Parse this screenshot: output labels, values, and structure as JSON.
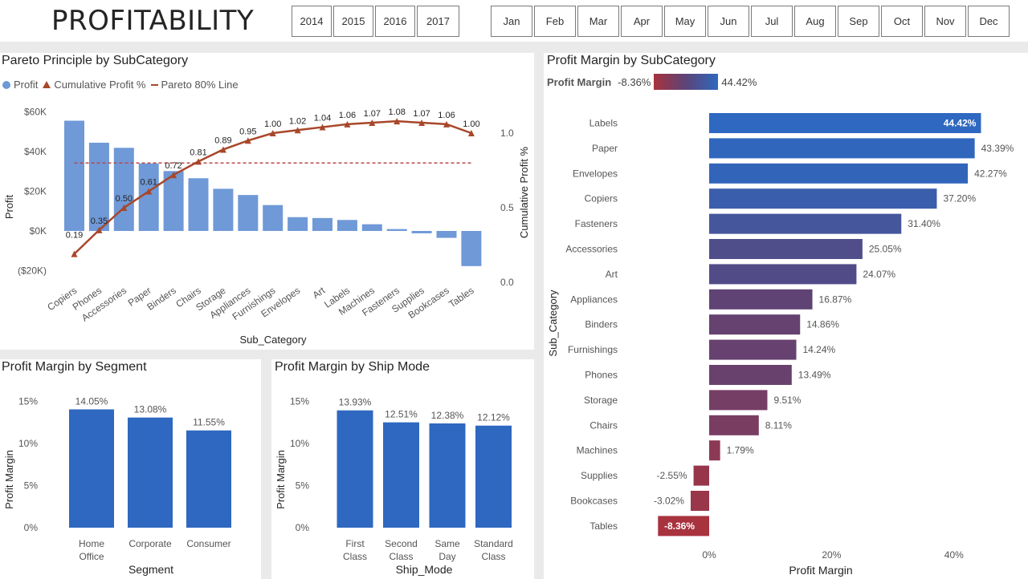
{
  "header": {
    "title": "PROFITABILITY",
    "years": [
      "2014",
      "2015",
      "2016",
      "2017"
    ],
    "months": [
      "Jan",
      "Feb",
      "Mar",
      "Apr",
      "May",
      "Jun",
      "Jul",
      "Aug",
      "Sep",
      "Oct",
      "Nov",
      "Dec"
    ]
  },
  "pareto": {
    "title": "Pareto Principle by SubCategory",
    "legend": {
      "profit": "Profit",
      "cumulative": "Cumulative Profit %",
      "pareto": "Pareto 80% Line"
    },
    "colors": {
      "bar": "#6f99d7",
      "line": "#a8472a"
    }
  },
  "segment": {
    "title": "Profit Margin by Segment"
  },
  "shipmode": {
    "title": "Profit Margin by Ship Mode"
  },
  "margin": {
    "title": "Profit Margin by SubCategory",
    "legend_label": "Profit Margin",
    "legend_min": "-8.36%",
    "legend_max": "44.42%"
  },
  "chart_data": [
    {
      "type": "bar",
      "title": "Pareto Principle by SubCategory",
      "categories": [
        "Copiers",
        "Phones",
        "Accessories",
        "Paper",
        "Binders",
        "Chairs",
        "Storage",
        "Appliances",
        "Furnishings",
        "Envelopes",
        "Art",
        "Labels",
        "Machines",
        "Fasteners",
        "Supplies",
        "Bookcases",
        "Tables"
      ],
      "series": [
        {
          "name": "Profit",
          "values": [
            55618,
            44516,
            41937,
            34054,
            30222,
            26590,
            21279,
            18138,
            13059,
            6964,
            6528,
            5546,
            3385,
            950,
            -1189,
            -3473,
            -17725
          ]
        },
        {
          "name": "Cumulative Profit %",
          "values": [
            0.19,
            0.35,
            0.5,
            0.61,
            0.72,
            0.81,
            0.89,
            0.95,
            1.0,
            1.02,
            1.04,
            1.06,
            1.07,
            1.08,
            1.07,
            1.06,
            1.0
          ]
        },
        {
          "name": "Pareto 80% Line",
          "values": [
            0.8,
            0.8,
            0.8,
            0.8,
            0.8,
            0.8,
            0.8,
            0.8,
            0.8,
            0.8,
            0.8,
            0.8,
            0.8,
            0.8,
            0.8,
            0.8,
            0.8
          ]
        }
      ],
      "data_labels": [
        "0.19",
        "0.35",
        "0.50",
        "0.61",
        "0.72",
        "0.81",
        "0.89",
        "0.95",
        "1.00",
        "1.02",
        "1.04",
        "1.06",
        "1.07",
        "1.08",
        "1.07",
        "1.06",
        "1.00"
      ],
      "xlabel": "Sub_Category",
      "ylabel": "Profit",
      "y2label": "Cumulative Profit %",
      "ylim": [
        -20000,
        60000
      ],
      "y2lim": [
        0,
        1.0
      ],
      "yticks": [
        "$60K",
        "$40K",
        "$20K",
        "$0K",
        "($20K)"
      ],
      "y2ticks": [
        "1.0",
        "0.5",
        "0.0"
      ],
      "legend": "top-left"
    },
    {
      "type": "bar",
      "title": "Profit Margin by Segment",
      "categories": [
        [
          "Home",
          "Office"
        ],
        [
          "Corporate"
        ],
        [
          "Consumer"
        ]
      ],
      "values": [
        14.05,
        13.08,
        11.55
      ],
      "data_labels": [
        "14.05%",
        "13.08%",
        "11.55%"
      ],
      "xlabel": "Segment",
      "ylabel": "Profit Margin",
      "ylim": [
        0,
        15
      ],
      "yticks": [
        "15%",
        "10%",
        "5%",
        "0%"
      ]
    },
    {
      "type": "bar",
      "title": "Profit Margin by Ship Mode",
      "categories": [
        [
          "First",
          "Class"
        ],
        [
          "Second",
          "Class"
        ],
        [
          "Same",
          "Day"
        ],
        [
          "Standard",
          "Class"
        ]
      ],
      "values": [
        13.93,
        12.51,
        12.38,
        12.12
      ],
      "data_labels": [
        "13.93%",
        "12.51%",
        "12.38%",
        "12.12%"
      ],
      "xlabel": "Ship_Mode",
      "ylabel": "Profit Margin",
      "ylim": [
        0,
        15
      ],
      "yticks": [
        "15%",
        "10%",
        "5%",
        "0%"
      ]
    },
    {
      "type": "bar",
      "title": "Profit Margin by SubCategory",
      "orientation": "horizontal",
      "categories": [
        "Labels",
        "Paper",
        "Envelopes",
        "Copiers",
        "Fasteners",
        "Accessories",
        "Art",
        "Appliances",
        "Binders",
        "Furnishings",
        "Phones",
        "Storage",
        "Chairs",
        "Machines",
        "Supplies",
        "Bookcases",
        "Tables"
      ],
      "values": [
        44.42,
        43.39,
        42.27,
        37.2,
        31.4,
        25.05,
        24.07,
        16.87,
        14.86,
        14.24,
        13.49,
        9.51,
        8.11,
        1.79,
        -2.55,
        -3.02,
        -8.36
      ],
      "data_labels": [
        "44.42%",
        "43.39%",
        "42.27%",
        "37.20%",
        "31.40%",
        "25.05%",
        "24.07%",
        "16.87%",
        "14.86%",
        "14.24%",
        "13.49%",
        "9.51%",
        "8.11%",
        "1.79%",
        "-2.55%",
        "-3.02%",
        "-8.36%"
      ],
      "xlabel": "Profit Margin",
      "ylabel": "Sub_Category",
      "xlim": [
        -10,
        45
      ],
      "xticks": [
        "0%",
        "20%",
        "40%"
      ],
      "colors": {
        "low": "#a8323e",
        "mid": "#5c4477",
        "high": "#2e68c0"
      }
    }
  ]
}
